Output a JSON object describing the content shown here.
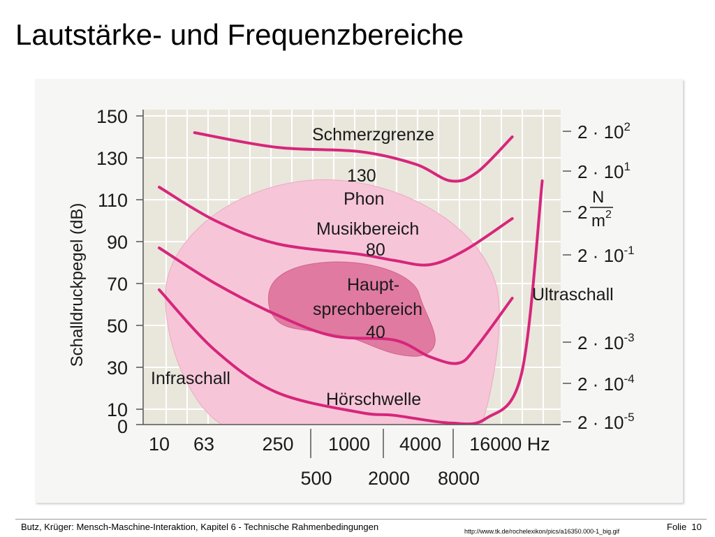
{
  "title": "Lautstärke- und Frequenzbereiche",
  "footer": {
    "credit": "Butz, Krüger: Mensch-Maschine-Interaktion, Kapitel 6 - Technische Rahmenbedingungen",
    "url": "http://www.tk.de/rochelexikon/pics/a16350.000-1_big.gif",
    "slide_label": "Folie",
    "slide_number": "10"
  },
  "colors": {
    "curve": "#d6267b",
    "music_area": "#f6c6d8",
    "speech_area": "#e07aa1",
    "plot_background": "#e9e6dc",
    "grid": "#ffffff"
  },
  "chart_data": {
    "type": "line",
    "ylabel": "Schalldruckpegel (dB)",
    "y_ticks": [
      "150",
      "130",
      "110",
      "90",
      "70",
      "50",
      "30",
      "10",
      "0"
    ],
    "ylim": [
      0,
      150
    ],
    "x_ticks_top": [
      "10",
      "63",
      "250",
      "1000",
      "4000",
      "16000 Hz"
    ],
    "x_ticks_bottom": [
      "500",
      "2000",
      "8000"
    ],
    "x_scale": "log",
    "right_axis_ticks": [
      {
        "base": "2 · 10",
        "exp": "2"
      },
      {
        "base": "2 · 10",
        "exp": "1"
      },
      {
        "base": "2",
        "exp": ""
      },
      {
        "base": "2 · 10",
        "exp": "-1"
      },
      {
        "base": "2 · 10",
        "exp": "-3"
      },
      {
        "base": "2 · 10",
        "exp": "-4"
      },
      {
        "base": "2 · 10",
        "exp": "-5"
      }
    ],
    "right_axis_unit": {
      "numerator": "N",
      "denominator": "m",
      "power": "2"
    },
    "grid": true,
    "areas": [
      {
        "name": "Musikbereich"
      },
      {
        "name": "Hauptsprechbereich"
      }
    ],
    "series": [
      {
        "name": "Schmerzgrenze",
        "x": [
          20,
          100,
          500,
          1500,
          3000,
          5000,
          10000
        ],
        "y": [
          142,
          135,
          133,
          127,
          119,
          123,
          140
        ]
      },
      {
        "name": "130 Phon",
        "x": [
          10,
          30,
          100,
          500,
          1000,
          2000,
          4000,
          10000
        ],
        "y": [
          116,
          100,
          89,
          84,
          81,
          79,
          86,
          101
        ]
      },
      {
        "name": "80",
        "x": [
          10,
          30,
          100,
          300,
          1000,
          2000,
          3500,
          5000,
          10000
        ],
        "y": [
          87,
          70,
          55,
          45,
          43,
          35,
          32,
          40,
          63
        ]
      },
      {
        "name": "Hörschwelle",
        "x": [
          10,
          30,
          100,
          500,
          1000,
          3000,
          6000,
          12000,
          18000
        ],
        "y": [
          67,
          38,
          18,
          8,
          6,
          1,
          4,
          27,
          119
        ]
      }
    ],
    "annotations": [
      "Schmerzgrenze",
      "130",
      "Phon",
      "Musikbereich",
      "80",
      "Haupt-",
      "sprechbereich",
      "40",
      "Ultraschall",
      "Infraschall",
      "Hörschwelle"
    ]
  }
}
